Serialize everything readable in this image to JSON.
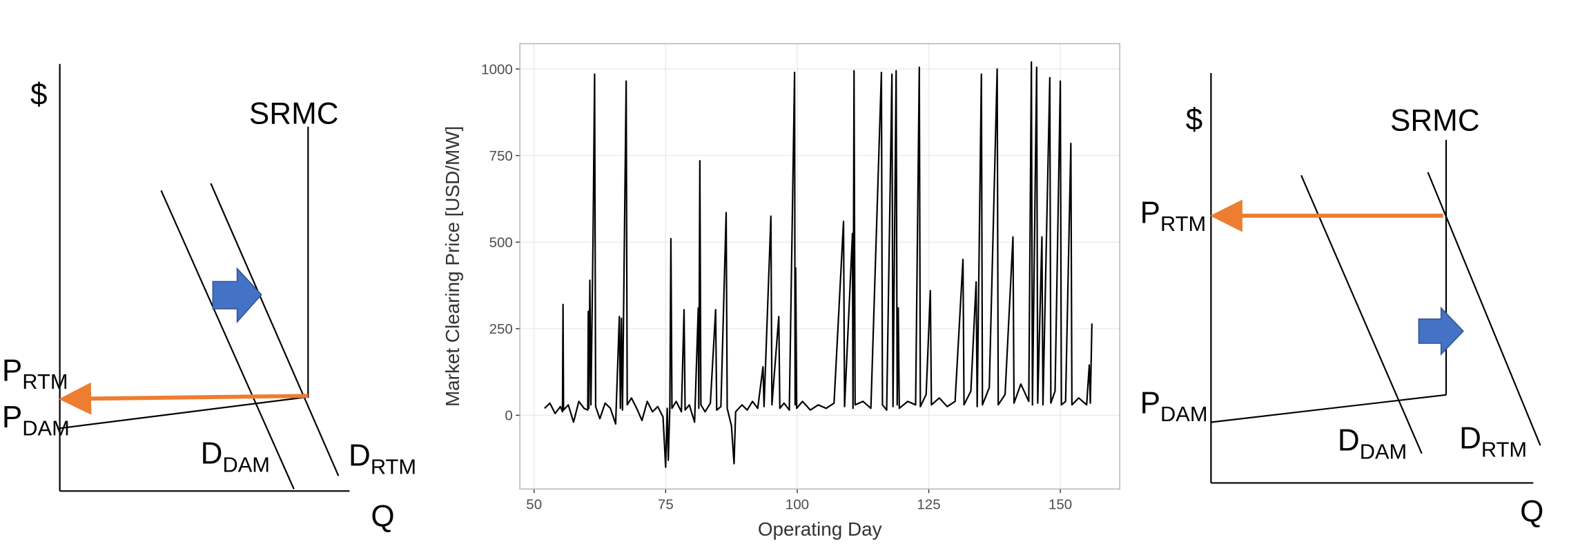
{
  "chart_data": {
    "type": "line",
    "ylabel": "Market Clearing Price [USD/MW]",
    "xlabel": "Operating Day",
    "xlim": [
      47.3,
      161.3
    ],
    "ylim": [
      -213,
      1073
    ],
    "xticks": [
      50,
      75,
      100,
      125,
      150
    ],
    "yticks": [
      0,
      250,
      500,
      750,
      1000
    ],
    "grid": true,
    "color": "#000000",
    "x": [
      52,
      53,
      54,
      55,
      55.4,
      55.5,
      55.6,
      56.5,
      57.5,
      58.5,
      59.5,
      60.2,
      60.3,
      60.4,
      60.6,
      60.8,
      61.2,
      61.5,
      61.7,
      62.5,
      63.5,
      64.5,
      65.5,
      66.2,
      66.4,
      66.6,
      66.8,
      67.5,
      67.7,
      68.5,
      69.5,
      70.5,
      71.5,
      72.5,
      73.5,
      74.5,
      75,
      75.3,
      75.5,
      75.8,
      76,
      76.2,
      77,
      78,
      78.5,
      78.7,
      79.5,
      80.5,
      81.2,
      81.3,
      81.5,
      81.7,
      82.5,
      83.5,
      84.5,
      84.7,
      85.5,
      86.5,
      86.7,
      87.5,
      88,
      88.3,
      89.5,
      90.5,
      91.5,
      92.5,
      93.5,
      93.7,
      95,
      95.2,
      96.5,
      96.7,
      97.5,
      98.5,
      99.5,
      99.6,
      99.7,
      99.9,
      101,
      102.5,
      104,
      105.5,
      107,
      108.8,
      109,
      110.5,
      110.6,
      110.8,
      111,
      112.5,
      114,
      116,
      116.2,
      117,
      118,
      118.2,
      118.8,
      119,
      119.2,
      119.4,
      121,
      122.5,
      123.2,
      123.4,
      124.5,
      125.3,
      125.5,
      127,
      128.5,
      130,
      131.5,
      131.7,
      133,
      134,
      134.2,
      135,
      135.2,
      136.5,
      138,
      138.2,
      139.5,
      141,
      141.2,
      142.5,
      144,
      144.5,
      144.7,
      145.5,
      145.7,
      146.5,
      146.7,
      148,
      148.2,
      149,
      150,
      150.2,
      151,
      152,
      152.2,
      153.5,
      155,
      155.5,
      155.7,
      156
    ],
    "values": [
      20,
      35,
      5,
      25,
      10,
      320,
      15,
      30,
      -20,
      40,
      20,
      15,
      300,
      20,
      390,
      30,
      505,
      985,
      25,
      -10,
      35,
      20,
      -25,
      285,
      20,
      280,
      15,
      965,
      30,
      50,
      20,
      -15,
      40,
      10,
      25,
      -5,
      -150,
      20,
      -130,
      25,
      510,
      20,
      40,
      10,
      305,
      15,
      30,
      -20,
      310,
      20,
      735,
      30,
      10,
      35,
      305,
      15,
      25,
      585,
      20,
      -30,
      -140,
      10,
      30,
      15,
      40,
      20,
      140,
      25,
      575,
      30,
      285,
      20,
      35,
      15,
      990,
      30,
      425,
      20,
      40,
      15,
      30,
      20,
      35,
      560,
      25,
      525,
      20,
      995,
      30,
      40,
      20,
      990,
      30,
      15,
      985,
      25,
      995,
      30,
      310,
      20,
      40,
      30,
      1005,
      25,
      60,
      360,
      30,
      50,
      25,
      40,
      450,
      30,
      70,
      385,
      25,
      985,
      30,
      80,
      1000,
      30,
      60,
      515,
      35,
      90,
      40,
      1020,
      30,
      1005,
      35,
      515,
      30,
      975,
      35,
      70,
      965,
      30,
      40,
      785,
      30,
      50,
      30,
      145,
      35,
      265
    ]
  },
  "diagrams": [
    {
      "ylabel": "$",
      "xlabel": "Q",
      "supply": "SRMC",
      "p_rtm": {
        "main": "P",
        "sub": "RTM"
      },
      "p_dam": {
        "main": "P",
        "sub": "DAM"
      },
      "d_dam": {
        "main": "D",
        "sub": "DAM"
      },
      "d_rtm": {
        "main": "D",
        "sub": "RTM"
      }
    },
    {
      "ylabel": "$",
      "xlabel": "Q",
      "supply": "SRMC",
      "p_rtm": {
        "main": "P",
        "sub": "RTM"
      },
      "p_dam": {
        "main": "P",
        "sub": "DAM"
      },
      "d_dam": {
        "main": "D",
        "sub": "DAM"
      },
      "d_rtm": {
        "main": "D",
        "sub": "RTM"
      }
    }
  ]
}
